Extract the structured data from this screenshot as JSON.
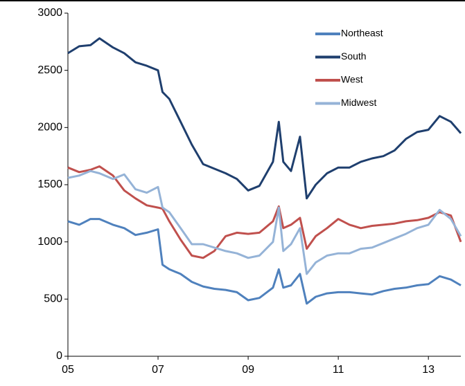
{
  "chart_data": {
    "type": "line",
    "x": [
      2005,
      2005.25,
      2005.5,
      2005.7,
      2006,
      2006.25,
      2006.5,
      2006.75,
      2007,
      2007.1,
      2007.25,
      2007.5,
      2007.75,
      2008,
      2008.25,
      2008.5,
      2008.75,
      2009,
      2009.25,
      2009.55,
      2009.68,
      2009.78,
      2009.95,
      2010.15,
      2010.3,
      2010.5,
      2010.75,
      2011,
      2011.25,
      2011.5,
      2011.75,
      2012,
      2012.25,
      2012.5,
      2012.75,
      2013,
      2013.25,
      2013.5,
      2013.72
    ],
    "series": [
      {
        "name": "Northeast",
        "color": "#4f81bd",
        "values": [
          1180,
          1150,
          1200,
          1200,
          1150,
          1120,
          1060,
          1080,
          1110,
          800,
          760,
          720,
          650,
          610,
          590,
          580,
          560,
          490,
          510,
          600,
          760,
          600,
          620,
          720,
          460,
          520,
          550,
          560,
          560,
          550,
          540,
          570,
          590,
          600,
          620,
          630,
          700,
          670,
          620
        ]
      },
      {
        "name": "South",
        "color": "#1f3f6e",
        "values": [
          2650,
          2710,
          2720,
          2780,
          2700,
          2650,
          2570,
          2540,
          2500,
          2310,
          2250,
          2050,
          1850,
          1680,
          1640,
          1600,
          1550,
          1450,
          1490,
          1700,
          2050,
          1700,
          1620,
          1920,
          1380,
          1500,
          1600,
          1650,
          1650,
          1700,
          1730,
          1750,
          1800,
          1900,
          1960,
          1980,
          2100,
          2050,
          1950
        ]
      },
      {
        "name": "West",
        "color": "#c0504d",
        "values": [
          1650,
          1610,
          1630,
          1660,
          1580,
          1450,
          1380,
          1320,
          1300,
          1290,
          1180,
          1020,
          880,
          860,
          920,
          1050,
          1080,
          1070,
          1080,
          1180,
          1310,
          1120,
          1150,
          1210,
          940,
          1050,
          1120,
          1200,
          1150,
          1120,
          1140,
          1150,
          1160,
          1180,
          1190,
          1210,
          1260,
          1230,
          1000
        ]
      },
      {
        "name": "Midwest",
        "color": "#95b3d7",
        "values": [
          1560,
          1580,
          1620,
          1600,
          1550,
          1590,
          1460,
          1430,
          1480,
          1300,
          1260,
          1120,
          980,
          980,
          950,
          920,
          900,
          860,
          880,
          1000,
          1300,
          920,
          980,
          1120,
          720,
          820,
          880,
          900,
          900,
          940,
          950,
          990,
          1030,
          1070,
          1120,
          1150,
          1280,
          1200,
          1050
        ]
      }
    ],
    "xlim": [
      2005,
      2013.72
    ],
    "xticks": [
      {
        "value": 2005,
        "label": "05"
      },
      {
        "value": 2007,
        "label": "07"
      },
      {
        "value": 2009,
        "label": "09"
      },
      {
        "value": 2011,
        "label": "11"
      },
      {
        "value": 2013,
        "label": "13"
      }
    ],
    "ylim": [
      0,
      3000
    ],
    "yticks": [
      0,
      500,
      1000,
      1500,
      2000,
      2500,
      3000
    ],
    "legend": "upper right"
  }
}
